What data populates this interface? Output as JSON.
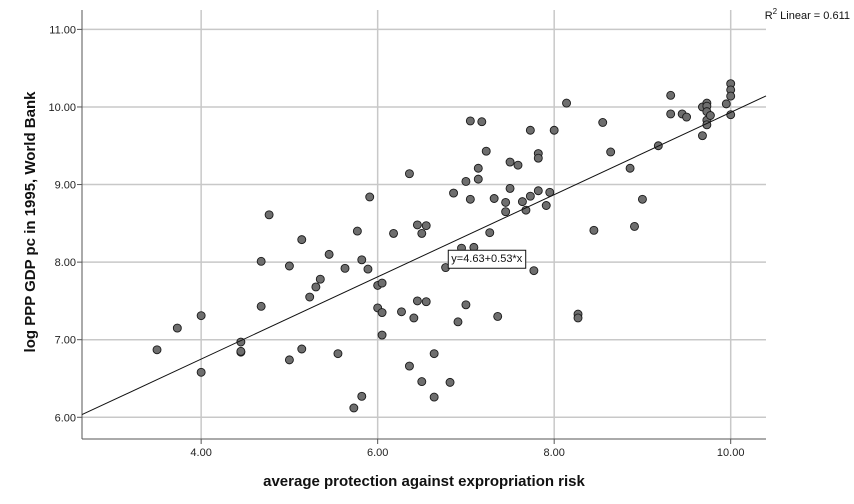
{
  "chart_data": {
    "type": "scatter",
    "xlabel": "average protection against expropriation risk",
    "ylabel": "log PPP GDP pc in 1995, World Bank",
    "xlim": [
      2.65,
      10.4
    ],
    "ylim": [
      5.72,
      11.25
    ],
    "x_ticks": [
      "4.00",
      "6.00",
      "8.00",
      "10.00"
    ],
    "x_tick_values": [
      4,
      6,
      8,
      10
    ],
    "y_ticks": [
      "6.00",
      "7.00",
      "8.00",
      "9.00",
      "10.00",
      "11.00"
    ],
    "y_tick_values": [
      6,
      7,
      8,
      9,
      10,
      11
    ],
    "grid": true,
    "fit_line": {
      "intercept": 4.63,
      "slope": 0.53,
      "label": "y=4.63+0.53*x",
      "label_at": [
        6.8,
        8.05
      ]
    },
    "r2_label": {
      "text": "R2 Linear = 0.611",
      "prefix": "R",
      "sup": "2",
      "rest": " Linear = 0.611"
    },
    "points": [
      [
        3.5,
        6.87
      ],
      [
        3.73,
        7.15
      ],
      [
        4.0,
        7.31
      ],
      [
        4.0,
        6.58
      ],
      [
        4.45,
        6.97
      ],
      [
        4.45,
        6.84
      ],
      [
        4.45,
        6.85
      ],
      [
        4.68,
        7.43
      ],
      [
        4.68,
        8.01
      ],
      [
        4.77,
        8.61
      ],
      [
        5.0,
        7.95
      ],
      [
        5.0,
        6.74
      ],
      [
        5.14,
        6.88
      ],
      [
        5.14,
        8.29
      ],
      [
        5.23,
        7.55
      ],
      [
        5.3,
        7.68
      ],
      [
        5.35,
        7.78
      ],
      [
        5.45,
        8.1
      ],
      [
        5.55,
        6.82
      ],
      [
        5.63,
        7.92
      ],
      [
        5.73,
        6.12
      ],
      [
        5.77,
        8.4
      ],
      [
        5.82,
        8.03
      ],
      [
        5.82,
        6.27
      ],
      [
        5.89,
        7.91
      ],
      [
        5.91,
        8.84
      ],
      [
        6.0,
        7.7
      ],
      [
        6.0,
        7.41
      ],
      [
        6.05,
        7.73
      ],
      [
        6.05,
        7.35
      ],
      [
        6.05,
        7.06
      ],
      [
        6.18,
        8.37
      ],
      [
        6.27,
        7.36
      ],
      [
        6.36,
        6.66
      ],
      [
        6.36,
        9.14
      ],
      [
        6.41,
        7.28
      ],
      [
        6.45,
        8.48
      ],
      [
        6.45,
        7.5
      ],
      [
        6.5,
        8.37
      ],
      [
        6.5,
        6.46
      ],
      [
        6.55,
        8.47
      ],
      [
        6.55,
        7.49
      ],
      [
        6.64,
        6.26
      ],
      [
        6.64,
        6.82
      ],
      [
        6.77,
        7.93
      ],
      [
        6.82,
        6.45
      ],
      [
        6.86,
        8.89
      ],
      [
        6.91,
        7.23
      ],
      [
        6.95,
        8.18
      ],
      [
        7.0,
        7.45
      ],
      [
        7.0,
        9.04
      ],
      [
        7.05,
        9.82
      ],
      [
        7.05,
        8.81
      ],
      [
        7.09,
        8.04
      ],
      [
        7.09,
        8.19
      ],
      [
        7.14,
        9.21
      ],
      [
        7.14,
        9.07
      ],
      [
        7.18,
        9.81
      ],
      [
        7.23,
        9.43
      ],
      [
        7.27,
        8.38
      ],
      [
        7.32,
        8.82
      ],
      [
        7.36,
        7.3
      ],
      [
        7.45,
        8.77
      ],
      [
        7.45,
        8.65
      ],
      [
        7.5,
        9.29
      ],
      [
        7.5,
        8.95
      ],
      [
        7.59,
        9.25
      ],
      [
        7.59,
        8.08
      ],
      [
        7.64,
        8.78
      ],
      [
        7.68,
        8.67
      ],
      [
        7.73,
        9.7
      ],
      [
        7.73,
        8.85
      ],
      [
        7.77,
        7.89
      ],
      [
        7.82,
        9.4
      ],
      [
        7.82,
        9.34
      ],
      [
        7.82,
        8.92
      ],
      [
        7.91,
        8.73
      ],
      [
        7.95,
        8.9
      ],
      [
        8.0,
        9.7
      ],
      [
        8.14,
        10.05
      ],
      [
        8.27,
        7.33
      ],
      [
        8.27,
        7.28
      ],
      [
        8.45,
        8.41
      ],
      [
        8.55,
        9.8
      ],
      [
        8.64,
        9.42
      ],
      [
        8.86,
        9.21
      ],
      [
        8.91,
        8.46
      ],
      [
        9.0,
        8.81
      ],
      [
        9.18,
        9.5
      ],
      [
        9.32,
        10.15
      ],
      [
        9.32,
        9.91
      ],
      [
        9.45,
        9.91
      ],
      [
        9.5,
        9.87
      ],
      [
        9.68,
        10.0
      ],
      [
        9.68,
        9.63
      ],
      [
        9.73,
        10.05
      ],
      [
        9.73,
        10.01
      ],
      [
        9.73,
        9.94
      ],
      [
        9.73,
        9.83
      ],
      [
        9.73,
        9.77
      ],
      [
        9.77,
        9.89
      ],
      [
        9.95,
        10.04
      ],
      [
        10.0,
        10.3
      ],
      [
        10.0,
        10.22
      ],
      [
        10.0,
        10.14
      ],
      [
        10.0,
        9.9
      ]
    ],
    "point_color": "#6e6e6e",
    "point_edge_color": "#1a1a1a",
    "grid_color": "#c8c8c8"
  }
}
